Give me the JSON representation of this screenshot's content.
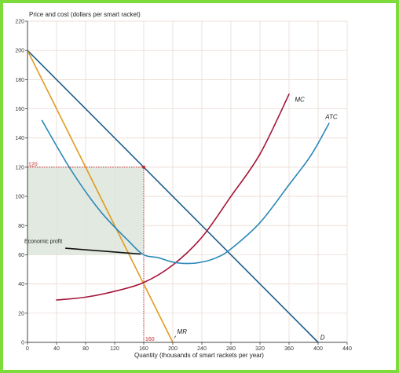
{
  "chart_data": {
    "type": "line",
    "ylabel": "Price and cost (dollars per smart racket)",
    "xlabel": "Quantity (thousands of smart rackets per year)",
    "xlim": [
      0,
      440
    ],
    "ylim": [
      0,
      220
    ],
    "x_ticks": [
      0,
      40,
      80,
      120,
      160,
      200,
      240,
      280,
      320,
      360,
      400,
      440
    ],
    "y_ticks": [
      0,
      20,
      40,
      60,
      80,
      100,
      120,
      140,
      160,
      180,
      200,
      220
    ],
    "grid": true,
    "colors": {
      "D": "#1d5d8c",
      "MR": "#e09b1f",
      "MC": "#a3163a",
      "ATC": "#2a87b8",
      "profit_area": "#dde5da",
      "marker": "#c0282d"
    },
    "series": [
      {
        "name": "D",
        "label": "D",
        "x": [
          0,
          400
        ],
        "y": [
          200,
          0
        ]
      },
      {
        "name": "MR",
        "label": "MR",
        "x": [
          0,
          200
        ],
        "y": [
          200,
          0
        ]
      },
      {
        "name": "MC",
        "label": "MC",
        "x": [
          40,
          80,
          120,
          160,
          200,
          240,
          280,
          320,
          360
        ],
        "y": [
          29,
          31,
          35,
          41,
          53,
          72,
          100,
          129,
          170
        ]
      },
      {
        "name": "ATC",
        "label": "ATC",
        "x": [
          20,
          60,
          100,
          140,
          160,
          180,
          200,
          220,
          240,
          260,
          280,
          320,
          360,
          390,
          415
        ],
        "y": [
          152,
          118,
          90,
          69,
          60,
          58,
          55,
          54,
          55,
          58,
          64,
          82,
          108,
          128,
          150
        ]
      }
    ],
    "profit_area": {
      "x": [
        0,
        160
      ],
      "y": [
        60,
        120
      ],
      "label": "Economic profit"
    },
    "guides": {
      "quantity": 160,
      "price": 120,
      "quantity_label": "160",
      "price_label": "120"
    }
  }
}
